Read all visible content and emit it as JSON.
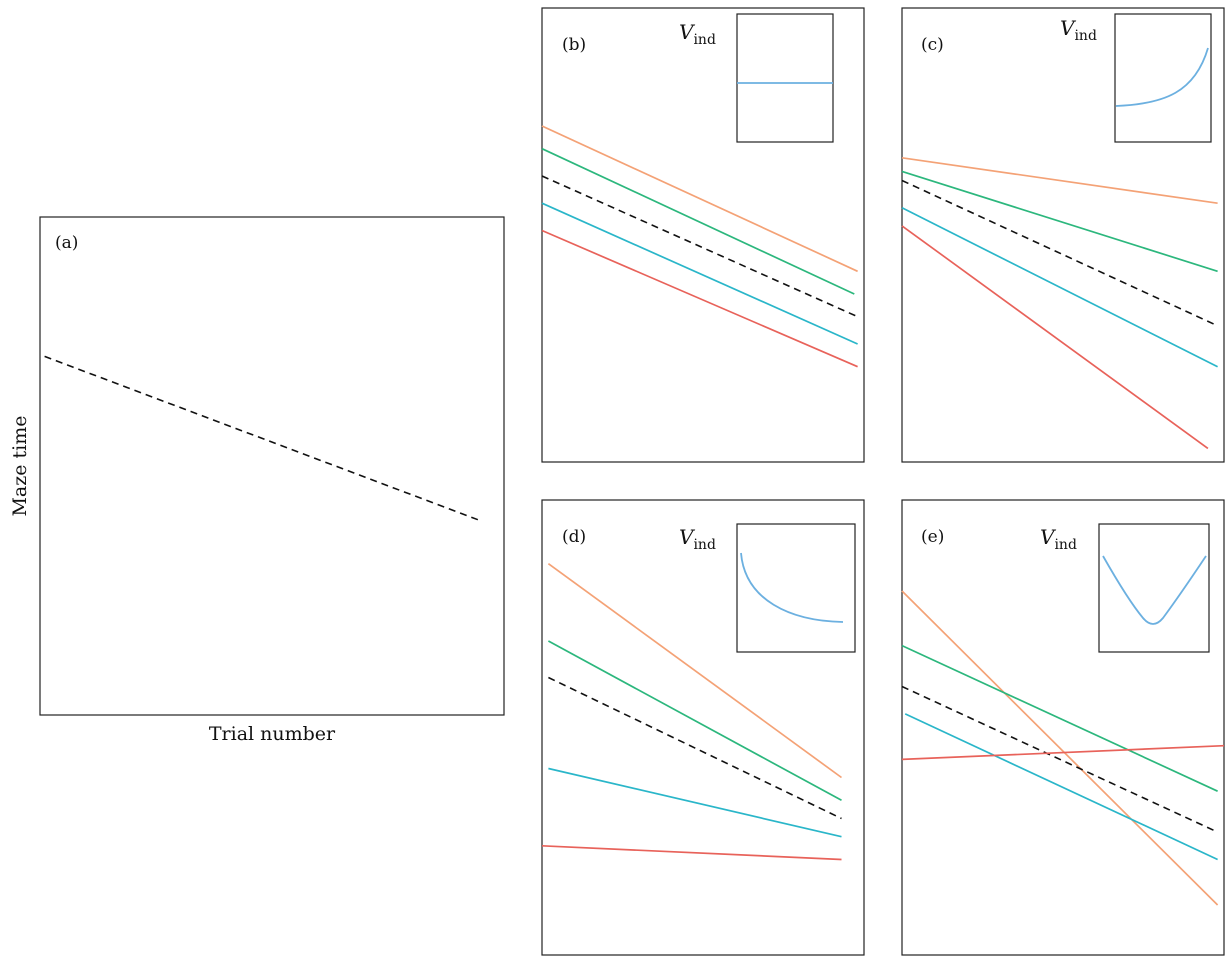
{
  "figure": {
    "xlabel": "Trial number",
    "ylabel": "Maze time",
    "inset_label_main": "V",
    "inset_label_sub": "ind"
  },
  "colors": {
    "orange": "#f4a276",
    "green": "#2cb77d",
    "cyan": "#2ab6c9",
    "red": "#e8625a",
    "black": "#111111",
    "inset_curve": "#6cb0e0"
  },
  "chart_data": [
    {
      "id": "a",
      "label": "(a)",
      "type": "line",
      "xlabel": "Trial number",
      "ylabel": "Maze time",
      "xlim": [
        0,
        1
      ],
      "ylim": [
        0,
        1
      ],
      "series": [
        {
          "role": "mean",
          "color": "black",
          "dash": true,
          "x": [
            0.01,
            0.95
          ],
          "y": [
            0.72,
            0.39
          ]
        }
      ]
    },
    {
      "id": "b",
      "label": "(b)",
      "type": "line",
      "xlim": [
        0,
        1
      ],
      "ylim": [
        0,
        1
      ],
      "inset": {
        "shape": "flat"
      },
      "series": [
        {
          "role": "individual-1",
          "color": "orange",
          "x": [
            0.0,
            0.98
          ],
          "y": [
            0.74,
            0.42
          ]
        },
        {
          "role": "individual-2",
          "color": "green",
          "x": [
            0.0,
            0.97
          ],
          "y": [
            0.69,
            0.37
          ]
        },
        {
          "role": "mean",
          "color": "black",
          "dash": true,
          "x": [
            0.0,
            0.98
          ],
          "y": [
            0.63,
            0.32
          ]
        },
        {
          "role": "individual-3",
          "color": "cyan",
          "x": [
            0.0,
            0.98
          ],
          "y": [
            0.57,
            0.26
          ]
        },
        {
          "role": "individual-4",
          "color": "red",
          "x": [
            0.0,
            0.98
          ],
          "y": [
            0.51,
            0.21
          ]
        }
      ]
    },
    {
      "id": "c",
      "label": "(c)",
      "type": "line",
      "xlim": [
        0,
        1
      ],
      "ylim": [
        0,
        1
      ],
      "inset": {
        "shape": "rising"
      },
      "series": [
        {
          "role": "individual-1",
          "color": "orange",
          "x": [
            0.0,
            0.98
          ],
          "y": [
            0.67,
            0.57
          ]
        },
        {
          "role": "individual-2",
          "color": "green",
          "x": [
            0.0,
            0.98
          ],
          "y": [
            0.64,
            0.42
          ]
        },
        {
          "role": "mean",
          "color": "black",
          "dash": true,
          "x": [
            0.0,
            0.98
          ],
          "y": [
            0.62,
            0.3
          ]
        },
        {
          "role": "individual-3",
          "color": "cyan",
          "x": [
            0.0,
            0.98
          ],
          "y": [
            0.56,
            0.21
          ]
        },
        {
          "role": "individual-4",
          "color": "red",
          "x": [
            0.0,
            0.95
          ],
          "y": [
            0.52,
            0.03
          ]
        }
      ]
    },
    {
      "id": "d",
      "label": "(d)",
      "type": "line",
      "xlim": [
        0,
        1
      ],
      "ylim": [
        0,
        1
      ],
      "inset": {
        "shape": "falling"
      },
      "series": [
        {
          "role": "individual-1",
          "color": "orange",
          "x": [
            0.02,
            0.93
          ],
          "y": [
            0.86,
            0.39
          ]
        },
        {
          "role": "individual-2",
          "color": "green",
          "x": [
            0.02,
            0.93
          ],
          "y": [
            0.69,
            0.34
          ]
        },
        {
          "role": "mean",
          "color": "black",
          "dash": true,
          "x": [
            0.02,
            0.93
          ],
          "y": [
            0.61,
            0.3
          ]
        },
        {
          "role": "individual-3",
          "color": "cyan",
          "x": [
            0.02,
            0.93
          ],
          "y": [
            0.41,
            0.26
          ]
        },
        {
          "role": "individual-4",
          "color": "red",
          "x": [
            0.0,
            0.93
          ],
          "y": [
            0.24,
            0.21
          ]
        }
      ]
    },
    {
      "id": "e",
      "label": "(e)",
      "type": "line",
      "xlim": [
        0,
        1
      ],
      "ylim": [
        0,
        1
      ],
      "inset": {
        "shape": "u-shape"
      },
      "series": [
        {
          "role": "individual-1",
          "color": "orange",
          "x": [
            0.0,
            0.98
          ],
          "y": [
            0.8,
            0.11
          ]
        },
        {
          "role": "individual-2",
          "color": "green",
          "x": [
            0.0,
            0.98
          ],
          "y": [
            0.68,
            0.36
          ]
        },
        {
          "role": "mean",
          "color": "black",
          "dash": true,
          "x": [
            0.0,
            0.98
          ],
          "y": [
            0.59,
            0.27
          ]
        },
        {
          "role": "individual-3",
          "color": "cyan",
          "x": [
            0.01,
            0.98
          ],
          "y": [
            0.53,
            0.21
          ]
        },
        {
          "role": "individual-4",
          "color": "red",
          "x": [
            0.0,
            1.0
          ],
          "y": [
            0.43,
            0.46
          ]
        }
      ]
    }
  ]
}
